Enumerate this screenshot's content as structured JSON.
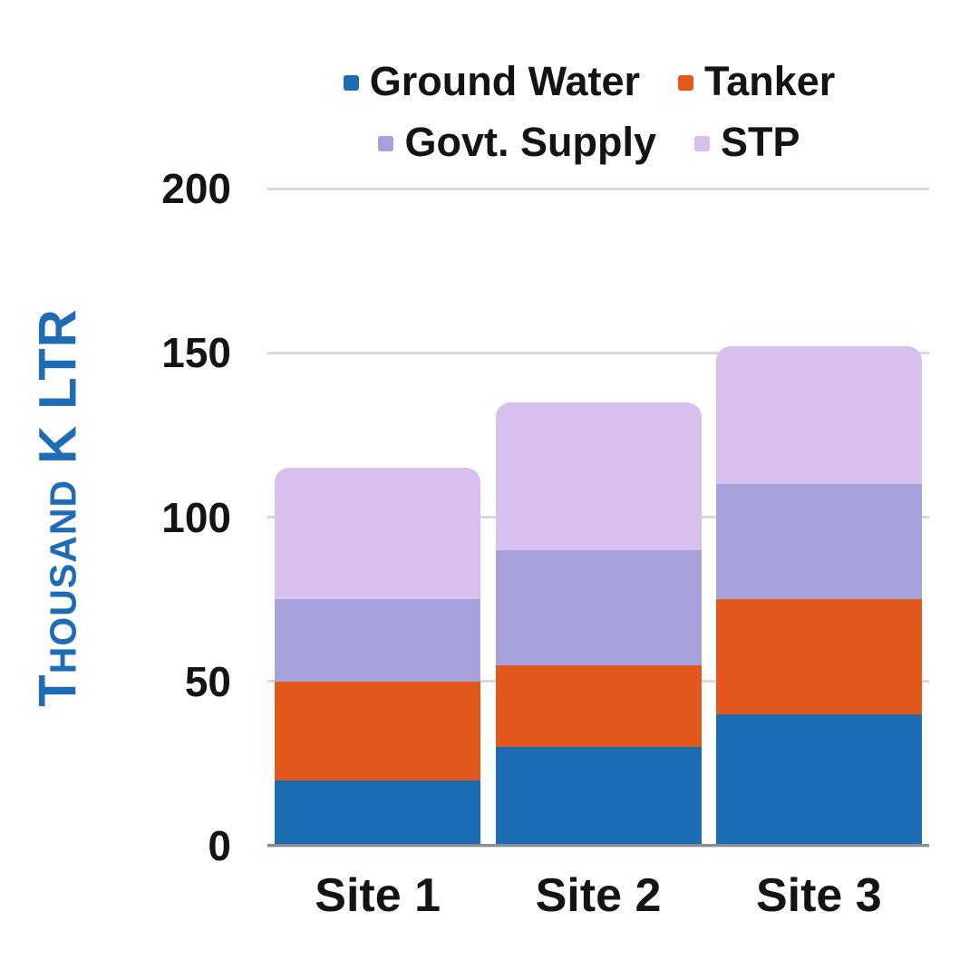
{
  "page": {
    "background": "#FFFFFF",
    "text_color": "#141414"
  },
  "chart_data": {
    "type": "bar",
    "stacked": true,
    "categories": [
      "Site 1",
      "Site 2",
      "Site 3"
    ],
    "series": [
      {
        "name": "Ground Water",
        "color": "#1B6CB3",
        "values": [
          20,
          30,
          40
        ]
      },
      {
        "name": "Tanker",
        "color": "#E3581C",
        "values": [
          30,
          25,
          35
        ]
      },
      {
        "name": "Govt. Supply",
        "color": "#A6A0DB",
        "values": [
          25,
          35,
          35
        ]
      },
      {
        "name": "STP",
        "color": "#D7C0ED",
        "values": [
          40,
          45,
          42
        ]
      }
    ],
    "xlabel": "",
    "ylabel": "Thousand K LTR",
    "ylabel_color": "#1E6CB5",
    "ylim": [
      0,
      200
    ],
    "yticks": [
      0,
      50,
      100,
      150,
      200
    ],
    "grid": "horizontal",
    "gridline_color": "#D9D9D9",
    "axis_line_color": "#8A8D91",
    "legend_position": "top"
  }
}
